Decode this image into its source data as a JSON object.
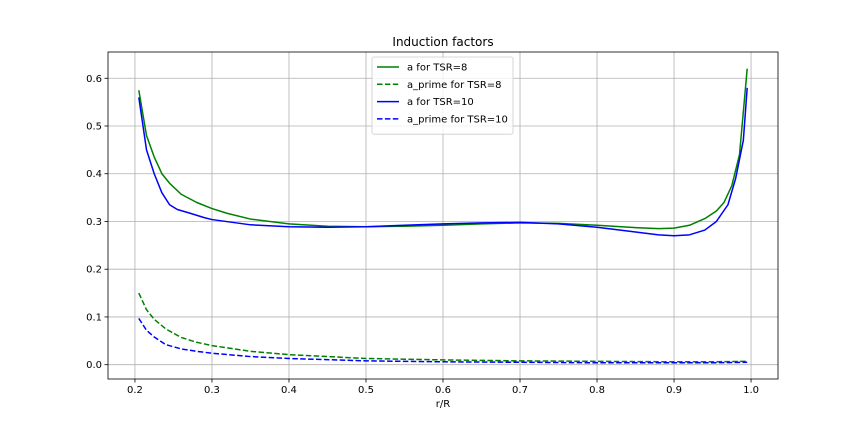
{
  "chart_data": {
    "type": "line",
    "title": "Induction factors",
    "xlabel": "r/R",
    "ylabel": "",
    "xlim": [
      0.165,
      1.035
    ],
    "ylim": [
      -0.03,
      0.655
    ],
    "xticks": [
      0.2,
      0.3,
      0.4,
      0.5,
      0.6,
      0.7,
      0.8,
      0.9,
      1.0
    ],
    "xtick_labels": [
      "0.2",
      "0.3",
      "0.4",
      "0.5",
      "0.6",
      "0.7",
      "0.8",
      "0.9",
      "1.0"
    ],
    "yticks": [
      0.0,
      0.1,
      0.2,
      0.3,
      0.4,
      0.5,
      0.6
    ],
    "ytick_labels": [
      "0.0",
      "0.1",
      "0.2",
      "0.3",
      "0.4",
      "0.5",
      "0.6"
    ],
    "grid": true,
    "legend": "top-center",
    "series": [
      {
        "name": "a for TSR=8",
        "color": "#008000",
        "dash": "solid",
        "x": [
          0.205,
          0.215,
          0.225,
          0.235,
          0.245,
          0.26,
          0.28,
          0.3,
          0.32,
          0.35,
          0.4,
          0.45,
          0.5,
          0.55,
          0.6,
          0.65,
          0.7,
          0.75,
          0.8,
          0.85,
          0.88,
          0.9,
          0.92,
          0.94,
          0.955,
          0.965,
          0.975,
          0.985,
          0.995
        ],
        "y": [
          0.575,
          0.48,
          0.435,
          0.4,
          0.38,
          0.357,
          0.34,
          0.327,
          0.317,
          0.305,
          0.295,
          0.29,
          0.289,
          0.29,
          0.292,
          0.295,
          0.297,
          0.296,
          0.292,
          0.287,
          0.285,
          0.286,
          0.292,
          0.306,
          0.322,
          0.34,
          0.375,
          0.44,
          0.62
        ]
      },
      {
        "name": "a_prime for TSR=8",
        "color": "#008000",
        "dash": "dashed",
        "x": [
          0.205,
          0.215,
          0.225,
          0.24,
          0.26,
          0.28,
          0.3,
          0.35,
          0.4,
          0.5,
          0.6,
          0.7,
          0.8,
          0.9,
          0.95,
          0.995
        ],
        "y": [
          0.15,
          0.115,
          0.095,
          0.075,
          0.057,
          0.047,
          0.04,
          0.028,
          0.021,
          0.013,
          0.01,
          0.008,
          0.007,
          0.006,
          0.006,
          0.007
        ]
      },
      {
        "name": "a for TSR=10",
        "color": "#0000ff",
        "dash": "solid",
        "x": [
          0.205,
          0.215,
          0.225,
          0.235,
          0.245,
          0.255,
          0.27,
          0.29,
          0.3,
          0.35,
          0.4,
          0.45,
          0.5,
          0.55,
          0.6,
          0.65,
          0.7,
          0.75,
          0.8,
          0.85,
          0.88,
          0.9,
          0.92,
          0.94,
          0.955,
          0.97,
          0.98,
          0.99,
          0.995
        ],
        "y": [
          0.56,
          0.45,
          0.4,
          0.36,
          0.335,
          0.325,
          0.318,
          0.308,
          0.304,
          0.293,
          0.289,
          0.288,
          0.289,
          0.292,
          0.295,
          0.297,
          0.298,
          0.295,
          0.288,
          0.278,
          0.272,
          0.27,
          0.272,
          0.282,
          0.3,
          0.335,
          0.39,
          0.47,
          0.58
        ]
      },
      {
        "name": "a_prime for TSR=10",
        "color": "#0000ff",
        "dash": "dashed",
        "x": [
          0.205,
          0.215,
          0.225,
          0.24,
          0.26,
          0.28,
          0.3,
          0.35,
          0.4,
          0.5,
          0.6,
          0.7,
          0.8,
          0.9,
          0.95,
          0.995
        ],
        "y": [
          0.097,
          0.072,
          0.058,
          0.042,
          0.033,
          0.028,
          0.024,
          0.017,
          0.013,
          0.008,
          0.006,
          0.005,
          0.004,
          0.004,
          0.004,
          0.005
        ]
      }
    ]
  }
}
